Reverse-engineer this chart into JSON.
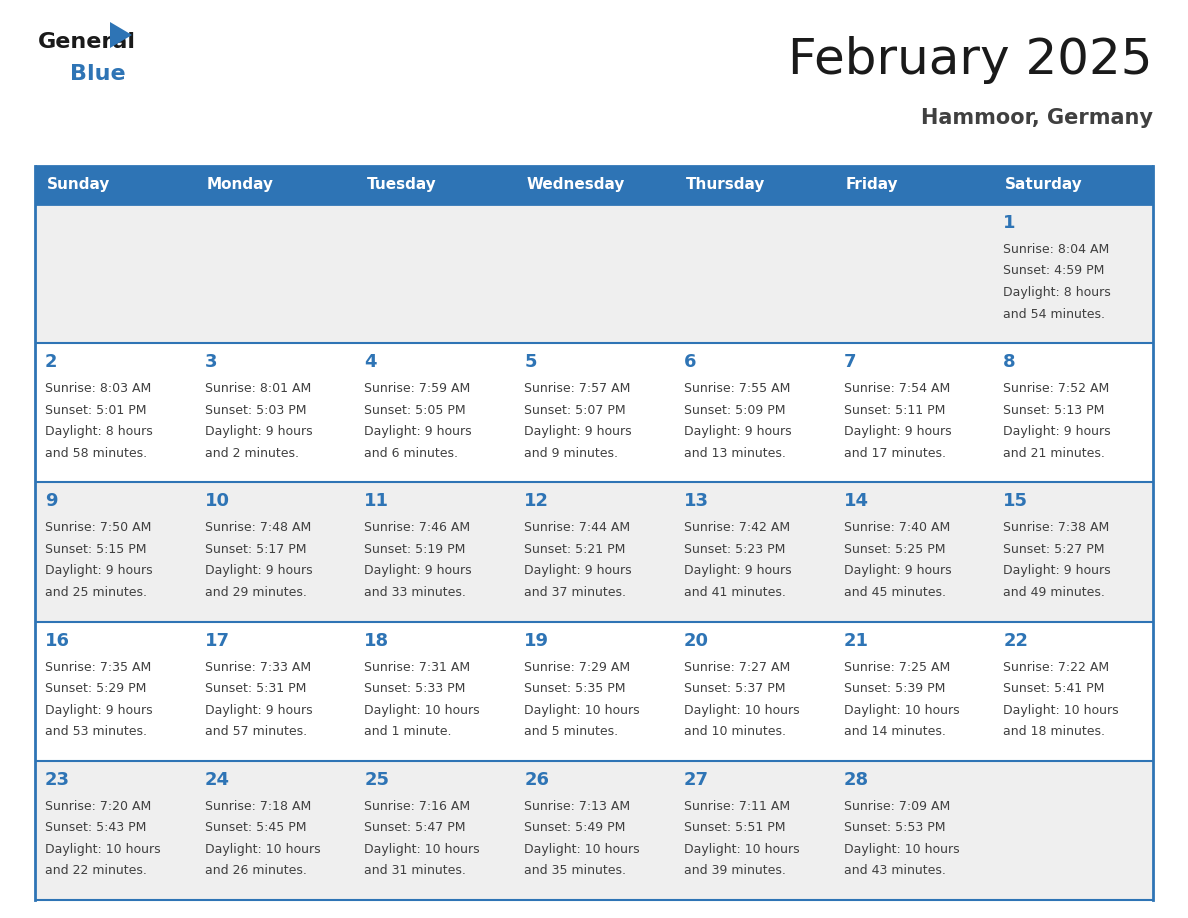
{
  "title": "February 2025",
  "subtitle": "Hammoor, Germany",
  "header_color": "#2E74B5",
  "header_text_color": "#FFFFFF",
  "day_names": [
    "Sunday",
    "Monday",
    "Tuesday",
    "Wednesday",
    "Thursday",
    "Friday",
    "Saturday"
  ],
  "border_color": "#2E74B5",
  "background_color": "#FFFFFF",
  "cell_bg_light": "#EFEFEF",
  "cell_bg_white": "#FFFFFF",
  "number_color": "#2E74B5",
  "text_color": "#404040",
  "title_fontsize": 36,
  "subtitle_fontsize": 15,
  "header_fontsize": 11,
  "day_num_fontsize": 13,
  "cell_text_fontsize": 9,
  "days": [
    {
      "day": 1,
      "col": 6,
      "row": 0,
      "sunrise": "8:04 AM",
      "sunset": "4:59 PM",
      "daylight_line1": "Daylight: 8 hours",
      "daylight_line2": "and 54 minutes."
    },
    {
      "day": 2,
      "col": 0,
      "row": 1,
      "sunrise": "8:03 AM",
      "sunset": "5:01 PM",
      "daylight_line1": "Daylight: 8 hours",
      "daylight_line2": "and 58 minutes."
    },
    {
      "day": 3,
      "col": 1,
      "row": 1,
      "sunrise": "8:01 AM",
      "sunset": "5:03 PM",
      "daylight_line1": "Daylight: 9 hours",
      "daylight_line2": "and 2 minutes."
    },
    {
      "day": 4,
      "col": 2,
      "row": 1,
      "sunrise": "7:59 AM",
      "sunset": "5:05 PM",
      "daylight_line1": "Daylight: 9 hours",
      "daylight_line2": "and 6 minutes."
    },
    {
      "day": 5,
      "col": 3,
      "row": 1,
      "sunrise": "7:57 AM",
      "sunset": "5:07 PM",
      "daylight_line1": "Daylight: 9 hours",
      "daylight_line2": "and 9 minutes."
    },
    {
      "day": 6,
      "col": 4,
      "row": 1,
      "sunrise": "7:55 AM",
      "sunset": "5:09 PM",
      "daylight_line1": "Daylight: 9 hours",
      "daylight_line2": "and 13 minutes."
    },
    {
      "day": 7,
      "col": 5,
      "row": 1,
      "sunrise": "7:54 AM",
      "sunset": "5:11 PM",
      "daylight_line1": "Daylight: 9 hours",
      "daylight_line2": "and 17 minutes."
    },
    {
      "day": 8,
      "col": 6,
      "row": 1,
      "sunrise": "7:52 AM",
      "sunset": "5:13 PM",
      "daylight_line1": "Daylight: 9 hours",
      "daylight_line2": "and 21 minutes."
    },
    {
      "day": 9,
      "col": 0,
      "row": 2,
      "sunrise": "7:50 AM",
      "sunset": "5:15 PM",
      "daylight_line1": "Daylight: 9 hours",
      "daylight_line2": "and 25 minutes."
    },
    {
      "day": 10,
      "col": 1,
      "row": 2,
      "sunrise": "7:48 AM",
      "sunset": "5:17 PM",
      "daylight_line1": "Daylight: 9 hours",
      "daylight_line2": "and 29 minutes."
    },
    {
      "day": 11,
      "col": 2,
      "row": 2,
      "sunrise": "7:46 AM",
      "sunset": "5:19 PM",
      "daylight_line1": "Daylight: 9 hours",
      "daylight_line2": "and 33 minutes."
    },
    {
      "day": 12,
      "col": 3,
      "row": 2,
      "sunrise": "7:44 AM",
      "sunset": "5:21 PM",
      "daylight_line1": "Daylight: 9 hours",
      "daylight_line2": "and 37 minutes."
    },
    {
      "day": 13,
      "col": 4,
      "row": 2,
      "sunrise": "7:42 AM",
      "sunset": "5:23 PM",
      "daylight_line1": "Daylight: 9 hours",
      "daylight_line2": "and 41 minutes."
    },
    {
      "day": 14,
      "col": 5,
      "row": 2,
      "sunrise": "7:40 AM",
      "sunset": "5:25 PM",
      "daylight_line1": "Daylight: 9 hours",
      "daylight_line2": "and 45 minutes."
    },
    {
      "day": 15,
      "col": 6,
      "row": 2,
      "sunrise": "7:38 AM",
      "sunset": "5:27 PM",
      "daylight_line1": "Daylight: 9 hours",
      "daylight_line2": "and 49 minutes."
    },
    {
      "day": 16,
      "col": 0,
      "row": 3,
      "sunrise": "7:35 AM",
      "sunset": "5:29 PM",
      "daylight_line1": "Daylight: 9 hours",
      "daylight_line2": "and 53 minutes."
    },
    {
      "day": 17,
      "col": 1,
      "row": 3,
      "sunrise": "7:33 AM",
      "sunset": "5:31 PM",
      "daylight_line1": "Daylight: 9 hours",
      "daylight_line2": "and 57 minutes."
    },
    {
      "day": 18,
      "col": 2,
      "row": 3,
      "sunrise": "7:31 AM",
      "sunset": "5:33 PM",
      "daylight_line1": "Daylight: 10 hours",
      "daylight_line2": "and 1 minute."
    },
    {
      "day": 19,
      "col": 3,
      "row": 3,
      "sunrise": "7:29 AM",
      "sunset": "5:35 PM",
      "daylight_line1": "Daylight: 10 hours",
      "daylight_line2": "and 5 minutes."
    },
    {
      "day": 20,
      "col": 4,
      "row": 3,
      "sunrise": "7:27 AM",
      "sunset": "5:37 PM",
      "daylight_line1": "Daylight: 10 hours",
      "daylight_line2": "and 10 minutes."
    },
    {
      "day": 21,
      "col": 5,
      "row": 3,
      "sunrise": "7:25 AM",
      "sunset": "5:39 PM",
      "daylight_line1": "Daylight: 10 hours",
      "daylight_line2": "and 14 minutes."
    },
    {
      "day": 22,
      "col": 6,
      "row": 3,
      "sunrise": "7:22 AM",
      "sunset": "5:41 PM",
      "daylight_line1": "Daylight: 10 hours",
      "daylight_line2": "and 18 minutes."
    },
    {
      "day": 23,
      "col": 0,
      "row": 4,
      "sunrise": "7:20 AM",
      "sunset": "5:43 PM",
      "daylight_line1": "Daylight: 10 hours",
      "daylight_line2": "and 22 minutes."
    },
    {
      "day": 24,
      "col": 1,
      "row": 4,
      "sunrise": "7:18 AM",
      "sunset": "5:45 PM",
      "daylight_line1": "Daylight: 10 hours",
      "daylight_line2": "and 26 minutes."
    },
    {
      "day": 25,
      "col": 2,
      "row": 4,
      "sunrise": "7:16 AM",
      "sunset": "5:47 PM",
      "daylight_line1": "Daylight: 10 hours",
      "daylight_line2": "and 31 minutes."
    },
    {
      "day": 26,
      "col": 3,
      "row": 4,
      "sunrise": "7:13 AM",
      "sunset": "5:49 PM",
      "daylight_line1": "Daylight: 10 hours",
      "daylight_line2": "and 35 minutes."
    },
    {
      "day": 27,
      "col": 4,
      "row": 4,
      "sunrise": "7:11 AM",
      "sunset": "5:51 PM",
      "daylight_line1": "Daylight: 10 hours",
      "daylight_line2": "and 39 minutes."
    },
    {
      "day": 28,
      "col": 5,
      "row": 4,
      "sunrise": "7:09 AM",
      "sunset": "5:53 PM",
      "daylight_line1": "Daylight: 10 hours",
      "daylight_line2": "and 43 minutes."
    }
  ]
}
